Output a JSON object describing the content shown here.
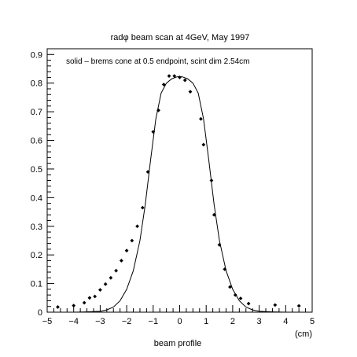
{
  "chart_data": {
    "type": "scatter",
    "title": "radφ beam scan at 4GeV, May 1997",
    "annotation": "solid – brems cone at 0.5 endpoint, scint dim 2.54cm",
    "xlabel": "beam profile",
    "x_unit": "(cm)",
    "ylabel": "",
    "xlim": [
      -5,
      5
    ],
    "ylim": [
      0,
      0.92
    ],
    "x_ticks": [
      -5,
      -4,
      -3,
      -2,
      -1,
      0,
      1,
      2,
      3,
      4,
      5
    ],
    "x_tick_labels": [
      "−5",
      "−4",
      "−3",
      "−2",
      "−1",
      "0",
      "1",
      "2",
      "3",
      "4",
      "5"
    ],
    "y_ticks": [
      0,
      0.1,
      0.2,
      0.3,
      0.4,
      0.5,
      0.6,
      0.7,
      0.8,
      0.9
    ],
    "y_tick_labels": [
      "0",
      "0.1",
      "0.2",
      "0.3",
      "0.4",
      "0.5",
      "0.6",
      "0.7",
      "0.8",
      "0.9"
    ],
    "grid": false,
    "series": [
      {
        "kind": "points",
        "marker": "diamond",
        "x": [
          -4.6,
          -4.0,
          -3.6,
          -3.4,
          -3.2,
          -3.0,
          -2.8,
          -2.6,
          -2.4,
          -2.2,
          -2.0,
          -1.8,
          -1.6,
          -1.4,
          -1.2,
          -1.0,
          -0.8,
          -0.6,
          -0.4,
          -0.2,
          0.0,
          0.2,
          0.4,
          0.8,
          0.9,
          1.2,
          1.3,
          1.5,
          1.7,
          1.9,
          2.1,
          2.3,
          2.6,
          3.6,
          4.5
        ],
        "y": [
          0.018,
          0.023,
          0.033,
          0.05,
          0.055,
          0.078,
          0.098,
          0.12,
          0.145,
          0.18,
          0.215,
          0.25,
          0.3,
          0.365,
          0.49,
          0.63,
          0.705,
          0.795,
          0.825,
          0.825,
          0.82,
          0.81,
          0.77,
          0.675,
          0.585,
          0.46,
          0.34,
          0.235,
          0.15,
          0.088,
          0.06,
          0.048,
          0.03,
          0.025,
          0.022
        ]
      },
      {
        "kind": "line",
        "x": [
          -5.0,
          -4.0,
          -3.5,
          -3.0,
          -2.75,
          -2.5,
          -2.25,
          -2.0,
          -1.75,
          -1.5,
          -1.3,
          -1.1,
          -0.9,
          -0.7,
          -0.5,
          -0.3,
          -0.1,
          0.0,
          0.1,
          0.3,
          0.5,
          0.7,
          0.9,
          1.1,
          1.3,
          1.5,
          1.75,
          2.0,
          2.25,
          2.5,
          2.75,
          3.0,
          3.5,
          4.0,
          5.0
        ],
        "y": [
          0.0,
          0.0,
          0.001,
          0.003,
          0.008,
          0.018,
          0.04,
          0.08,
          0.145,
          0.25,
          0.375,
          0.53,
          0.675,
          0.765,
          0.8,
          0.815,
          0.822,
          0.823,
          0.822,
          0.815,
          0.8,
          0.765,
          0.675,
          0.53,
          0.375,
          0.25,
          0.145,
          0.08,
          0.04,
          0.018,
          0.008,
          0.003,
          0.001,
          0.0,
          0.0
        ]
      }
    ]
  }
}
